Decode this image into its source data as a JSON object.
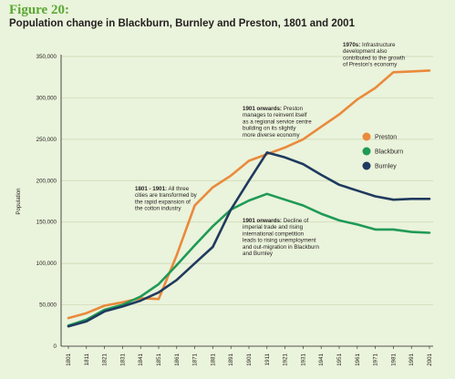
{
  "figure": {
    "label": "Figure 20:",
    "title": "Population change in Blackburn, Burnley and Preston, 1801 and 2001"
  },
  "chart_data": {
    "type": "line",
    "title": "Population change in Blackburn, Burnley and Preston, 1801 and 2001",
    "xlabel": "",
    "ylabel": "Population",
    "x": [
      1801,
      1811,
      1821,
      1831,
      1841,
      1851,
      1861,
      1871,
      1881,
      1891,
      1901,
      1911,
      1921,
      1931,
      1941,
      1951,
      1961,
      1971,
      1981,
      1991,
      2001
    ],
    "ylim": [
      0,
      350000
    ],
    "yticks": [
      0,
      50000,
      100000,
      150000,
      200000,
      250000,
      300000,
      350000
    ],
    "ytick_labels": [
      "0",
      "50,000",
      "100,000",
      "150,000",
      "200,000",
      "250,000",
      "300,000",
      "350,000"
    ],
    "grid": "horizontal",
    "legend_position": "right",
    "series": [
      {
        "name": "Preston",
        "color": "#e98a3c",
        "values": [
          34000,
          40000,
          49000,
          53000,
          58000,
          57000,
          110000,
          170000,
          192000,
          206000,
          224000,
          232000,
          240000,
          250000,
          265000,
          280000,
          298000,
          312000,
          331000,
          332000,
          333000
        ]
      },
      {
        "name": "Blackburn",
        "color": "#1f9a56",
        "values": [
          25000,
          32000,
          44000,
          50000,
          60000,
          75000,
          98000,
          122000,
          145000,
          165000,
          176000,
          184000,
          177000,
          170000,
          160000,
          152000,
          147000,
          141000,
          141000,
          138000,
          137000
        ]
      },
      {
        "name": "Burnley",
        "color": "#1f3a5f",
        "values": [
          24000,
          30000,
          42000,
          48000,
          55000,
          65000,
          80000,
          100000,
          120000,
          165000,
          200000,
          234000,
          228000,
          220000,
          207000,
          195000,
          188000,
          181000,
          177000,
          178000,
          178000
        ]
      }
    ],
    "annotations": [
      {
        "bold": "1970s:",
        "lines": [
          " Infrastructure",
          "development also",
          "contributed to the growth",
          "of Preston's economy"
        ]
      },
      {
        "bold": "1901 onwards:",
        "lines": [
          " Preston",
          "manages to reinvent itself",
          "as a regional service centre",
          "building on its slightly",
          "more diverse economy"
        ]
      },
      {
        "bold": "1801 - 1901:",
        "lines": [
          " All three",
          "cities are transformed by",
          "the rapid expansion of",
          "the cotton industry"
        ]
      },
      {
        "bold": "1901 onwards:",
        "lines": [
          " Decline of",
          "imperial trade and rising",
          "international competition",
          "leads to rising unemployment",
          "and out-migration in Blackburn",
          "and Burnley"
        ]
      }
    ]
  }
}
